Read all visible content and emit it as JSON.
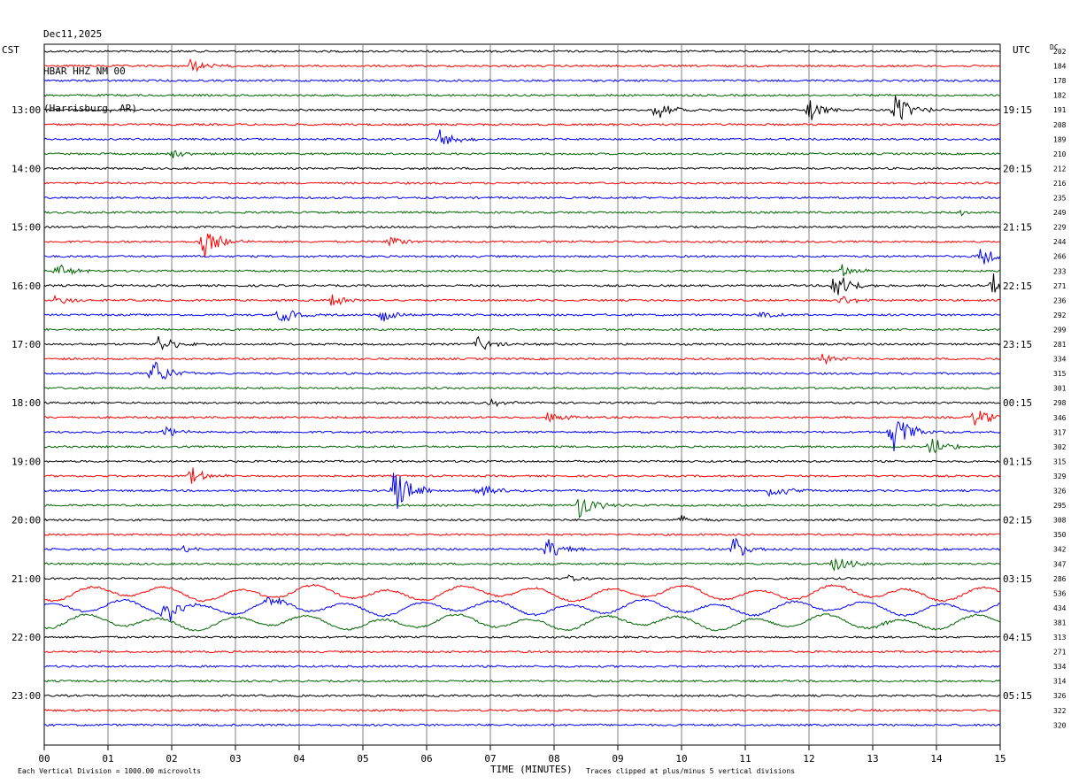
{
  "header": {
    "date": "Dec11,2025",
    "station": "HBAR HHZ NM 00",
    "location": "(Harrisburg, AR)"
  },
  "labels": {
    "left_tz": "CST",
    "right_tz": "UTC",
    "dc_header": "DC",
    "footer_left": "Each Vertical Division = 1000.00 microvolts",
    "footer_center": "TIME (MINUTES)",
    "footer_right": "Traces clipped at plus/minus 5 vertical divisions"
  },
  "colors": {
    "trace": [
      "#000000",
      "#ff0000",
      "#0000ff",
      "#006600"
    ],
    "grid": "#808080"
  },
  "chart_data": {
    "type": "line",
    "title": "HBAR HHZ NM 00",
    "xlabel": "TIME (MINUTES)",
    "xlim": [
      0,
      15
    ],
    "x_ticks": [
      "00",
      "01",
      "02",
      "03",
      "04",
      "05",
      "06",
      "07",
      "08",
      "09",
      "10",
      "11",
      "12",
      "13",
      "14",
      "15"
    ],
    "left_hour_labels": [
      "13:00",
      "14:00",
      "15:00",
      "16:00",
      "17:00",
      "18:00",
      "19:00",
      "20:00",
      "21:00",
      "22:00",
      "23:00"
    ],
    "right_hour_labels": [
      "19:15",
      "20:15",
      "21:15",
      "22:15",
      "23:15",
      "00:15",
      "01:15",
      "02:15",
      "03:15",
      "04:15",
      "05:15"
    ],
    "first_labeled_line": 4,
    "lines_per_hour": 4,
    "dc_offsets": [
      202,
      184,
      178,
      182,
      191,
      208,
      189,
      210,
      212,
      216,
      235,
      249,
      229,
      244,
      266,
      233,
      271,
      236,
      292,
      299,
      281,
      334,
      315,
      301,
      298,
      346,
      317,
      302,
      315,
      329,
      326,
      295,
      308,
      350,
      342,
      347,
      286,
      536,
      434,
      381,
      313,
      271,
      334,
      314,
      326,
      322,
      320
    ],
    "events": [
      {
        "line": 1,
        "minute": 2.3,
        "amplitude": 8
      },
      {
        "line": 4,
        "minute": 9.6,
        "amplitude": 12
      },
      {
        "line": 4,
        "minute": 12.0,
        "amplitude": 13
      },
      {
        "line": 4,
        "minute": 13.35,
        "amplitude": 20
      },
      {
        "line": 6,
        "minute": 6.2,
        "amplitude": 12
      },
      {
        "line": 7,
        "minute": 2.0,
        "amplitude": 5
      },
      {
        "line": 11,
        "minute": 14.4,
        "amplitude": 4
      },
      {
        "line": 13,
        "minute": 2.5,
        "amplitude": 20
      },
      {
        "line": 13,
        "minute": 5.4,
        "amplitude": 8
      },
      {
        "line": 14,
        "minute": 14.7,
        "amplitude": 12
      },
      {
        "line": 15,
        "minute": 0.2,
        "amplitude": 8
      },
      {
        "line": 15,
        "minute": 12.5,
        "amplitude": 8
      },
      {
        "line": 16,
        "minute": 12.4,
        "amplitude": 18
      },
      {
        "line": 16,
        "minute": 14.9,
        "amplitude": 18
      },
      {
        "line": 17,
        "minute": 0.2,
        "amplitude": 7
      },
      {
        "line": 17,
        "minute": 4.5,
        "amplitude": 8
      },
      {
        "line": 17,
        "minute": 12.5,
        "amplitude": 7
      },
      {
        "line": 18,
        "minute": 3.7,
        "amplitude": 10
      },
      {
        "line": 18,
        "minute": 5.3,
        "amplitude": 9
      },
      {
        "line": 18,
        "minute": 11.2,
        "amplitude": 5
      },
      {
        "line": 20,
        "minute": 1.8,
        "amplitude": 10
      },
      {
        "line": 20,
        "minute": 6.8,
        "amplitude": 9
      },
      {
        "line": 21,
        "minute": 12.2,
        "amplitude": 6
      },
      {
        "line": 22,
        "minute": 1.7,
        "amplitude": 18
      },
      {
        "line": 24,
        "minute": 7.0,
        "amplitude": 4
      },
      {
        "line": 25,
        "minute": 7.9,
        "amplitude": 7
      },
      {
        "line": 25,
        "minute": 14.6,
        "amplitude": 12
      },
      {
        "line": 26,
        "minute": 1.9,
        "amplitude": 7
      },
      {
        "line": 26,
        "minute": 13.3,
        "amplitude": 28
      },
      {
        "line": 27,
        "minute": 13.9,
        "amplitude": 12
      },
      {
        "line": 29,
        "minute": 2.3,
        "amplitude": 10
      },
      {
        "line": 30,
        "minute": 5.5,
        "amplitude": 30
      },
      {
        "line": 30,
        "minute": 6.8,
        "amplitude": 8
      },
      {
        "line": 30,
        "minute": 11.4,
        "amplitude": 10
      },
      {
        "line": 31,
        "minute": 8.4,
        "amplitude": 16
      },
      {
        "line": 32,
        "minute": 10.0,
        "amplitude": 5
      },
      {
        "line": 34,
        "minute": 2.2,
        "amplitude": 4
      },
      {
        "line": 34,
        "minute": 7.9,
        "amplitude": 14
      },
      {
        "line": 34,
        "minute": 10.8,
        "amplitude": 14
      },
      {
        "line": 35,
        "minute": 12.4,
        "amplitude": 10
      },
      {
        "line": 36,
        "minute": 8.2,
        "amplitude": 5
      },
      {
        "line": 38,
        "minute": 1.9,
        "amplitude": 14
      },
      {
        "line": 38,
        "minute": 3.5,
        "amplitude": 6
      },
      {
        "line": 39,
        "minute": 13.1,
        "amplitude": 4
      }
    ],
    "microseism_lines": [
      37,
      38,
      39
    ],
    "grid": true
  }
}
